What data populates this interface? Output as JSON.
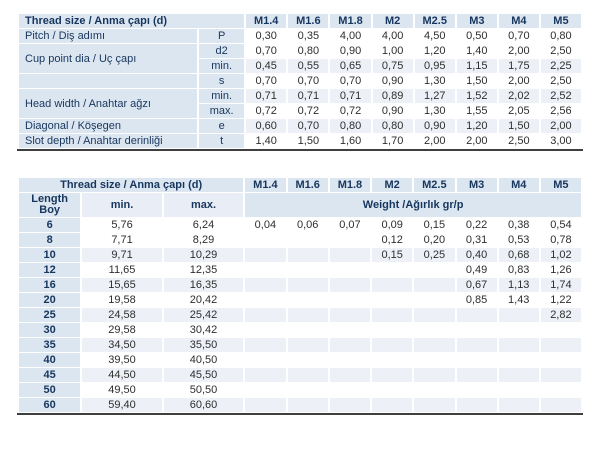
{
  "colors": {
    "header_bg": "#dce6f1",
    "subheader_minmax_bg": "#e9eef6",
    "stripe_bg": "#edf1f7",
    "header_text": "#17365d",
    "body_text": "#2e2e2e",
    "table_bottom_border": "#3f3f3f"
  },
  "table1": {
    "header_label": "Thread size / Anma çapı (d)",
    "sizes": [
      "M1.4",
      "M1.6",
      "M1.8",
      "M2",
      "M2.5",
      "M3",
      "M4",
      "M5"
    ],
    "rows": [
      {
        "label": "Pitch / Diş adımı",
        "sym": "P",
        "values": [
          "0,30",
          "0,35",
          "4,00",
          "4,00",
          "4,50",
          "0,50",
          "0,70",
          "0,80"
        ]
      },
      {
        "label": "Cup point dia / Uç çapı",
        "sym": "d2",
        "values": [
          "0,70",
          "0,80",
          "0,90",
          "1,00",
          "1,20",
          "1,40",
          "2,00",
          "2,50"
        ]
      },
      {
        "sym": "min.",
        "values": [
          "0,45",
          "0,55",
          "0,65",
          "0,75",
          "0,95",
          "1,15",
          "1,75",
          "2,25"
        ]
      },
      {
        "label": "",
        "sym": "s",
        "values": [
          "0,70",
          "0,70",
          "0,70",
          "0,90",
          "1,30",
          "1,50",
          "2,00",
          "2,50"
        ]
      },
      {
        "label": "Head width / Anahtar ağzı",
        "sym": "min.",
        "values": [
          "0,71",
          "0,71",
          "0,71",
          "0,89",
          "1,27",
          "1,52",
          "2,02",
          "2,52"
        ]
      },
      {
        "sym": "max.",
        "values": [
          "0,72",
          "0,72",
          "0,72",
          "0,90",
          "1,30",
          "1,55",
          "2,05",
          "2,56"
        ]
      },
      {
        "label": "Diagonal / Köşegen",
        "sym": "e",
        "values": [
          "0,60",
          "0,70",
          "0,80",
          "0,80",
          "0,90",
          "1,20",
          "1,50",
          "2,00"
        ]
      },
      {
        "label": "Slot depth / Anahtar derinliği",
        "sym": "t",
        "values": [
          "1,40",
          "1,50",
          "1,60",
          "1,70",
          "2,00",
          "2,00",
          "2,50",
          "3,00"
        ]
      }
    ]
  },
  "table2": {
    "header_label": "Thread size / Anma çapı (d)",
    "sizes": [
      "M1.4",
      "M1.6",
      "M1.8",
      "M2",
      "M2.5",
      "M3",
      "M4",
      "M5"
    ],
    "subheader": {
      "length_line1": "Length",
      "length_line2": "Boy",
      "min": "min.",
      "max": "max.",
      "weight": "Weight /Ağırlık gr/p"
    },
    "rows": [
      {
        "length": "6",
        "min": "5,76",
        "max": "6,24",
        "weights": [
          "0,04",
          "0,06",
          "0,07",
          "0,09",
          "0,15",
          "0,22",
          "0,38",
          "0,54"
        ]
      },
      {
        "length": "8",
        "min": "7,71",
        "max": "8,29",
        "weights": [
          "",
          "",
          "",
          "0,12",
          "0,20",
          "0,31",
          "0,53",
          "0,78"
        ]
      },
      {
        "length": "10",
        "min": "9,71",
        "max": "10,29",
        "weights": [
          "",
          "",
          "",
          "0,15",
          "0,25",
          "0,40",
          "0,68",
          "1,02"
        ]
      },
      {
        "length": "12",
        "min": "11,65",
        "max": "12,35",
        "weights": [
          "",
          "",
          "",
          "",
          "",
          "0,49",
          "0,83",
          "1,26"
        ]
      },
      {
        "length": "16",
        "min": "15,65",
        "max": "16,35",
        "weights": [
          "",
          "",
          "",
          "",
          "",
          "0,67",
          "1,13",
          "1,74"
        ]
      },
      {
        "length": "20",
        "min": "19,58",
        "max": "20,42",
        "weights": [
          "",
          "",
          "",
          "",
          "",
          "0,85",
          "1,43",
          "1,22"
        ]
      },
      {
        "length": "25",
        "min": "24,58",
        "max": "25,42",
        "weights": [
          "",
          "",
          "",
          "",
          "",
          "",
          "",
          "2,82"
        ]
      },
      {
        "length": "30",
        "min": "29,58",
        "max": "30,42",
        "weights": [
          "",
          "",
          "",
          "",
          "",
          "",
          "",
          ""
        ]
      },
      {
        "length": "35",
        "min": "34,50",
        "max": "35,50",
        "weights": [
          "",
          "",
          "",
          "",
          "",
          "",
          "",
          ""
        ]
      },
      {
        "length": "40",
        "min": "39,50",
        "max": "40,50",
        "weights": [
          "",
          "",
          "",
          "",
          "",
          "",
          "",
          ""
        ]
      },
      {
        "length": "45",
        "min": "44,50",
        "max": "45,50",
        "weights": [
          "",
          "",
          "",
          "",
          "",
          "",
          "",
          ""
        ]
      },
      {
        "length": "50",
        "min": "49,50",
        "max": "50,50",
        "weights": [
          "",
          "",
          "",
          "",
          "",
          "",
          "",
          ""
        ]
      },
      {
        "length": "60",
        "min": "59,40",
        "max": "60,60",
        "weights": [
          "",
          "",
          "",
          "",
          "",
          "",
          "",
          ""
        ]
      }
    ]
  }
}
